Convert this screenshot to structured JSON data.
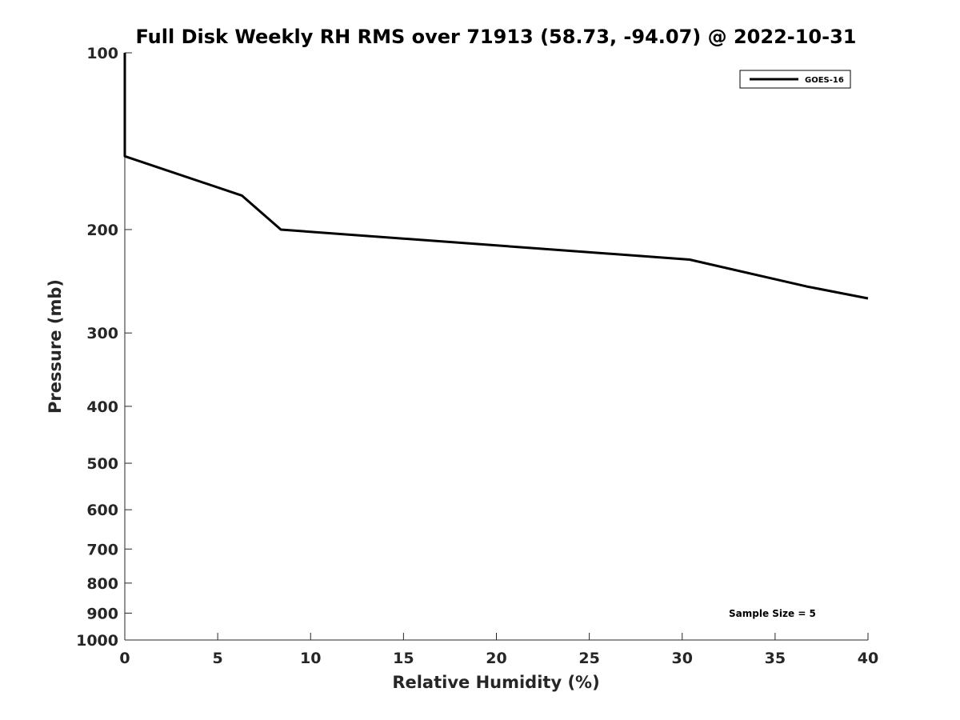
{
  "chart_data": {
    "type": "line",
    "title": "Full Disk Weekly RH RMS over 71913 (58.73, -94.07) @ 2022-10-31",
    "xlabel": "Relative Humidity (%)",
    "ylabel": "Pressure (mb)",
    "xlim": [
      0,
      40
    ],
    "ylim": [
      100,
      1000
    ],
    "y_scale": "log",
    "y_reversed": true,
    "grid": false,
    "legend_position": "top-right",
    "x_ticks": [
      "0",
      "5",
      "10",
      "15",
      "20",
      "25",
      "30",
      "35",
      "40"
    ],
    "y_ticks": [
      "100",
      "200",
      "300",
      "400",
      "500",
      "600",
      "700",
      "800",
      "900",
      "1000"
    ],
    "series": [
      {
        "name": "GOES-16",
        "color": "#000000",
        "points": [
          {
            "x": 0.0,
            "y": 100
          },
          {
            "x": 0.0,
            "y": 125
          },
          {
            "x": 0.0,
            "y": 150
          },
          {
            "x": 6.3,
            "y": 175
          },
          {
            "x": 8.4,
            "y": 200
          },
          {
            "x": 30.4,
            "y": 225
          },
          {
            "x": 36.7,
            "y": 250
          },
          {
            "x": 40.0,
            "y": 262
          }
        ]
      }
    ],
    "annotation": "Sample Size = 5"
  }
}
